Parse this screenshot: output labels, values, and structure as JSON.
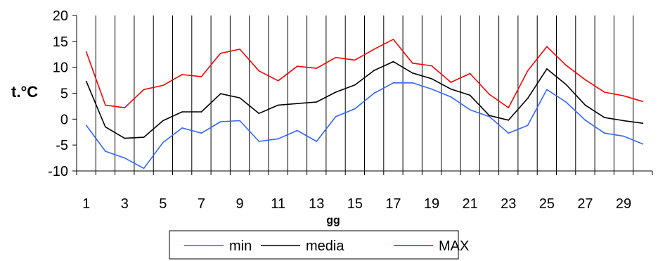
{
  "chart_data": {
    "type": "line",
    "title": "",
    "xlabel": "gg",
    "ylabel": "t.°C",
    "x": [
      1,
      2,
      3,
      4,
      5,
      6,
      7,
      8,
      9,
      10,
      11,
      12,
      13,
      14,
      15,
      16,
      17,
      18,
      19,
      20,
      21,
      22,
      23,
      24,
      25,
      26,
      27,
      28,
      29,
      30
    ],
    "x_tick_labels": [
      "1",
      "3",
      "5",
      "7",
      "9",
      "11",
      "13",
      "15",
      "17",
      "19",
      "21",
      "23",
      "25",
      "27",
      "29"
    ],
    "x_tick_values": [
      1,
      3,
      5,
      7,
      9,
      11,
      13,
      15,
      17,
      19,
      21,
      23,
      25,
      27,
      29
    ],
    "ylim": [
      -10,
      20
    ],
    "y_ticks": [
      -10,
      -5,
      0,
      5,
      10,
      15,
      20
    ],
    "y_tick_labels": [
      "-10",
      "-5",
      "0",
      "5",
      "10",
      "15",
      "20"
    ],
    "grid": "vertical",
    "legend_position": "bottom",
    "series": [
      {
        "name": "min",
        "color": "#3366ff",
        "values": [
          -1.2,
          -6.2,
          -7.5,
          -9.5,
          -4.5,
          -1.7,
          -2.7,
          -0.5,
          -0.3,
          -4.3,
          -3.8,
          -2.2,
          -4.3,
          0.5,
          2.0,
          5.0,
          7.0,
          7.0,
          5.8,
          4.3,
          1.8,
          0.5,
          -2.7,
          -1.2,
          5.7,
          3.3,
          -0.2,
          -2.7,
          -3.3,
          -4.8
        ]
      },
      {
        "name": "media",
        "color": "#000000",
        "values": [
          7.3,
          -1.5,
          -3.7,
          -3.5,
          -0.3,
          1.4,
          1.4,
          4.9,
          4.1,
          1.1,
          2.7,
          3.0,
          3.3,
          5.2,
          6.6,
          9.4,
          11.1,
          8.9,
          7.8,
          5.8,
          4.6,
          0.7,
          -0.2,
          4.0,
          9.7,
          6.7,
          2.7,
          0.3,
          -0.3,
          -0.8
        ]
      },
      {
        "name": "MAX",
        "color": "#ff0000",
        "values": [
          13.0,
          2.7,
          2.2,
          5.7,
          6.5,
          8.6,
          8.2,
          12.7,
          13.5,
          9.3,
          7.4,
          10.2,
          9.8,
          11.9,
          11.4,
          13.5,
          15.4,
          10.8,
          10.3,
          7.1,
          8.8,
          4.8,
          2.2,
          9.3,
          14.0,
          10.4,
          7.6,
          5.2,
          4.5,
          3.4
        ]
      }
    ]
  }
}
